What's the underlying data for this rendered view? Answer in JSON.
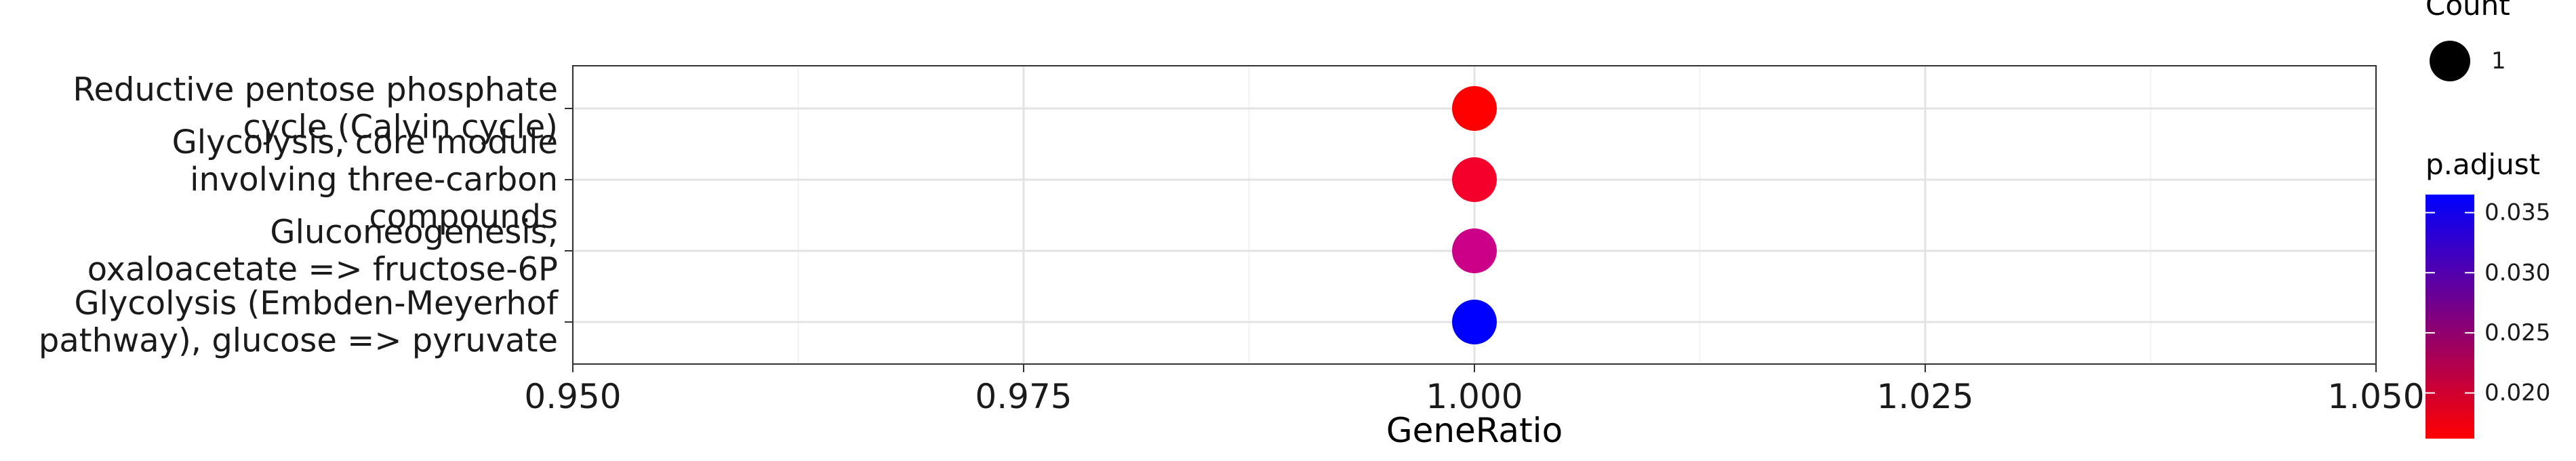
{
  "chart_data": {
    "type": "scatter",
    "xlabel": "GeneRatio",
    "ylabel": "",
    "xlim": [
      0.95,
      1.05
    ],
    "x_ticks": [
      "0.950",
      "0.975",
      "1.000",
      "1.025",
      "1.050"
    ],
    "x_tick_values": [
      0.95,
      0.975,
      1.0,
      1.025,
      1.05
    ],
    "categories": [
      "Reductive pentose phosphate cycle (Calvin cycle)",
      "Glycolysis, core module involving three-carbon compounds",
      "Gluconeogenesis, oxaloacetate => fructose-6P",
      "Glycolysis (Embden-Meyerhof pathway), glucose => pyruvate"
    ],
    "category_lines": [
      [
        "Reductive pentose phosphate",
        "cycle (Calvin cycle)"
      ],
      [
        "Glycolysis, core module",
        "involving three-carbon",
        "compounds"
      ],
      [
        "Gluconeogenesis,",
        "oxaloacetate => fructose-6P"
      ],
      [
        "Glycolysis (Embden-Meyerhof",
        "pathway), glucose => pyruvate"
      ]
    ],
    "points": [
      {
        "category": "Reductive pentose phosphate cycle (Calvin cycle)",
        "x": 1.0,
        "count": 1,
        "p_adjust": 0.0165,
        "color": "#ff0000"
      },
      {
        "category": "Glycolysis, core module involving three-carbon compounds",
        "x": 1.0,
        "count": 1,
        "p_adjust": 0.0172,
        "color": "#f5002a"
      },
      {
        "category": "Gluconeogenesis, oxaloacetate => fructose-6P",
        "x": 1.0,
        "count": 1,
        "p_adjust": 0.0235,
        "color": "#cc0088"
      },
      {
        "category": "Glycolysis (Embden-Meyerhof pathway), glucose => pyruvate",
        "x": 1.0,
        "count": 1,
        "p_adjust": 0.0365,
        "color": "#0000ff"
      }
    ],
    "grid": true,
    "legend": {
      "size_title": "Count",
      "size_entries": [
        {
          "label": "1",
          "value": 1
        }
      ],
      "color_title": "p.adjust",
      "color_range": [
        0.0162,
        0.0365
      ],
      "color_ticks": [
        "0.020",
        "0.025",
        "0.030",
        "0.035"
      ],
      "color_tick_values": [
        0.02,
        0.025,
        0.03,
        0.035
      ],
      "color_low": "#ff0000",
      "color_high": "#0000ff",
      "placement": "right"
    }
  }
}
